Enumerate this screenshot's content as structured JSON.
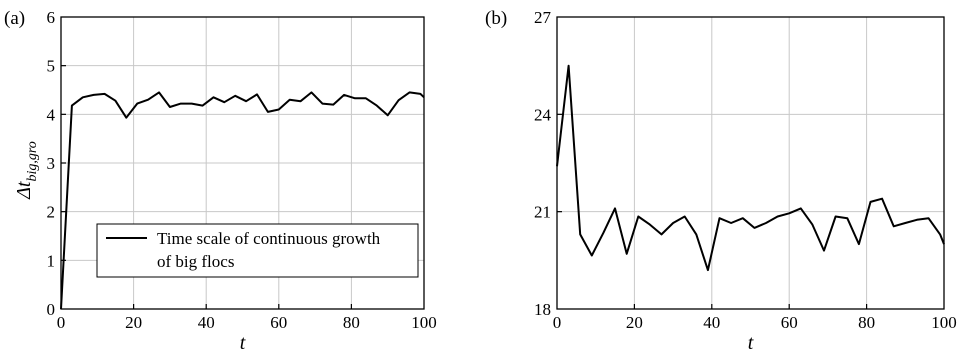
{
  "figure": {
    "ylabel_main": "Δt",
    "ylabel_sub": "big,gro"
  },
  "chart_data": [
    {
      "panel": "(a)",
      "type": "line",
      "xlabel": "t",
      "xlim": [
        0,
        100
      ],
      "ylim": [
        0,
        6
      ],
      "xticks": [
        0,
        20,
        40,
        60,
        80,
        100
      ],
      "yticks": [
        0,
        1,
        2,
        3,
        4,
        5,
        6
      ],
      "grid": true,
      "legend": {
        "placement": "bottom-center",
        "label_line1": "Time scale of continuous growth",
        "label_line2": "of big flocs"
      },
      "series": [
        {
          "name": "Time scale of continuous growth of big flocs",
          "x": [
            0,
            3,
            6,
            9,
            12,
            15,
            18,
            21,
            24,
            27,
            30,
            33,
            36,
            39,
            42,
            45,
            48,
            51,
            54,
            57,
            60,
            63,
            66,
            69,
            72,
            75,
            78,
            81,
            84,
            87,
            90,
            93,
            96,
            99,
            100
          ],
          "y": [
            0,
            4.18,
            4.35,
            4.4,
            4.42,
            4.28,
            3.93,
            4.22,
            4.3,
            4.45,
            4.15,
            4.22,
            4.22,
            4.18,
            4.35,
            4.25,
            4.38,
            4.27,
            4.41,
            4.05,
            4.1,
            4.3,
            4.27,
            4.45,
            4.22,
            4.2,
            4.4,
            4.33,
            4.33,
            4.18,
            3.98,
            4.29,
            4.45,
            4.42,
            4.35
          ]
        }
      ]
    },
    {
      "panel": "(b)",
      "type": "line",
      "xlabel": "t",
      "xlim": [
        0,
        100
      ],
      "ylim": [
        18,
        27
      ],
      "xticks": [
        0,
        20,
        40,
        60,
        80,
        100
      ],
      "yticks": [
        18,
        21,
        24,
        27
      ],
      "grid": true,
      "series": [
        {
          "x": [
            0,
            3,
            6,
            9,
            12,
            15,
            18,
            21,
            24,
            27,
            30,
            33,
            36,
            39,
            42,
            45,
            48,
            51,
            54,
            57,
            60,
            63,
            66,
            69,
            72,
            75,
            78,
            81,
            84,
            87,
            90,
            93,
            96,
            99,
            100
          ],
          "y": [
            22.4,
            25.5,
            20.3,
            19.65,
            20.35,
            21.1,
            19.7,
            20.85,
            20.6,
            20.3,
            20.65,
            20.85,
            20.3,
            19.2,
            20.8,
            20.65,
            20.8,
            20.5,
            20.65,
            20.85,
            20.95,
            21.1,
            20.6,
            19.8,
            20.85,
            20.8,
            20.0,
            21.3,
            21.4,
            20.55,
            20.65,
            20.75,
            20.8,
            20.3,
            20.0
          ]
        }
      ]
    }
  ]
}
